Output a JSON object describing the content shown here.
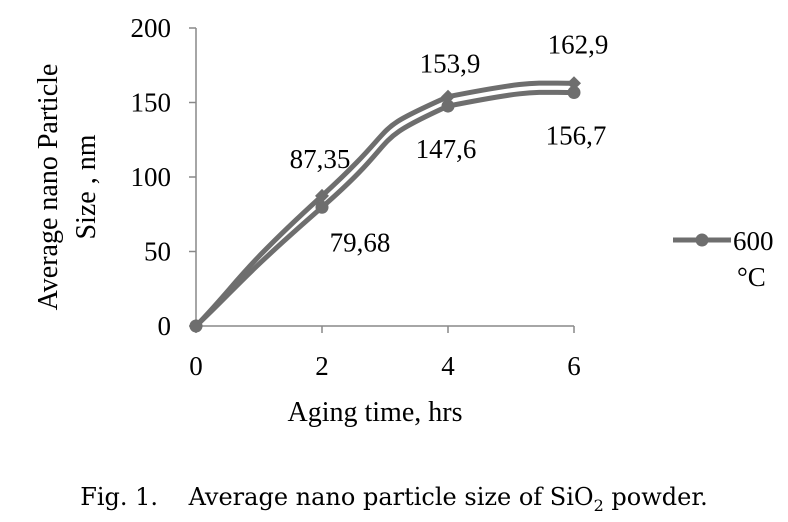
{
  "chart_data": {
    "type": "line",
    "x": [
      0,
      2,
      4,
      6
    ],
    "series": [
      {
        "name": "",
        "marker": "diamond",
        "values": [
          0,
          87.35,
          153.9,
          162.9
        ],
        "labels": [
          "",
          "87,35",
          "153,9",
          "162,9"
        ]
      },
      {
        "name": "600 °C",
        "marker": "circle",
        "values": [
          0,
          79.68,
          147.6,
          156.7
        ],
        "labels": [
          "",
          "79,68",
          "147,6",
          "156,7"
        ]
      }
    ],
    "xticks": [
      "0",
      "2",
      "4",
      "6"
    ],
    "yticks": [
      "0",
      "50",
      "100",
      "150",
      "200"
    ],
    "xlim": [
      0,
      6
    ],
    "ylim": [
      0,
      200
    ],
    "xlabel": "Aging time, hrs",
    "ylabel_line1": "Average nano Particle",
    "ylabel_line2": "Size , nm",
    "legend": {
      "placement": "right",
      "line1": "600",
      "line2": "°C"
    },
    "grid": false,
    "line_color": "#6e6e6e"
  },
  "caption": {
    "prefix": "Fig. 1.",
    "text": "Average nano particle size of SiO",
    "subscript": "2",
    "suffix": " powder."
  }
}
